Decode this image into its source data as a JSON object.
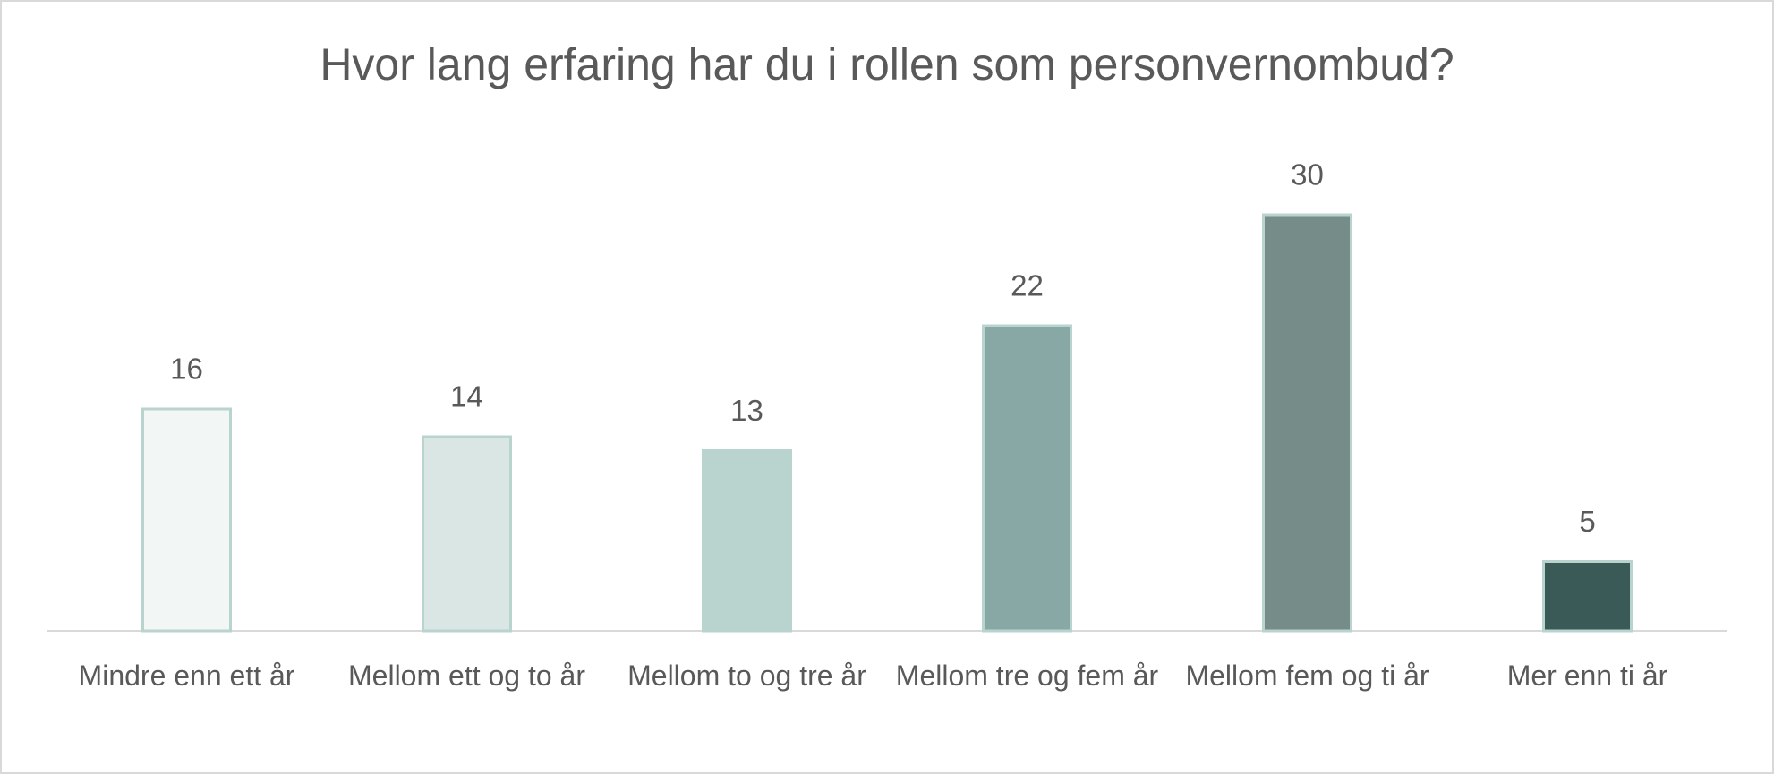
{
  "chart_data": {
    "type": "bar",
    "title": "Hvor lang erfaring har du i rollen som personvernombud?",
    "categories": [
      "Mindre enn ett år",
      "Mellom ett og to år",
      "Mellom to og tre år",
      "Mellom tre og fem år",
      "Mellom fem og ti år",
      "Mer enn ti år"
    ],
    "values": [
      16,
      14,
      13,
      22,
      30,
      5
    ],
    "colors": [
      "#f2f6f5",
      "#dae6e4",
      "#b9d3cf",
      "#88a8a5",
      "#758c88",
      "#3a5a58"
    ],
    "edgecolor": "#b9d3cf"
  }
}
